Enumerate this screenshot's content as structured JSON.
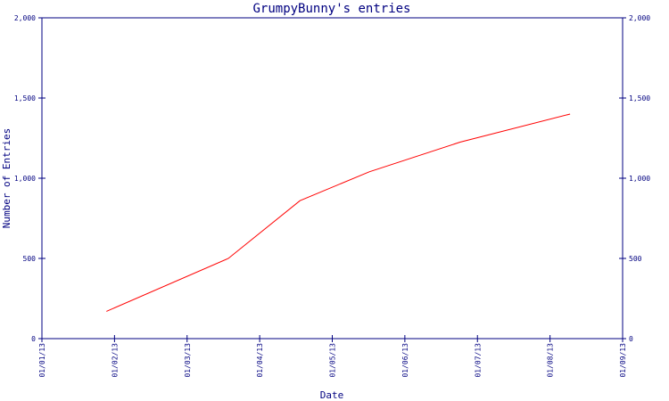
{
  "chart_data": {
    "type": "line",
    "title": "GrumpyBunny's entries",
    "xlabel": "Date",
    "ylabel": "Number of Entries",
    "x_ticks": [
      "01/01/13",
      "01/02/13",
      "01/03/13",
      "01/04/13",
      "01/05/13",
      "01/06/13",
      "01/07/13",
      "01/08/13",
      "01/09/13"
    ],
    "y_ticks": [
      "0",
      "500",
      "1,000",
      "1,500",
      "2,000"
    ],
    "y_tick_values": [
      0,
      500,
      1000,
      1500,
      2000
    ],
    "ylim": [
      0,
      2000
    ],
    "xlim": [
      "2013-01-01",
      "2013-09-01"
    ],
    "y_axis_right": true,
    "grid": false,
    "line_color": "#ff0000",
    "axis_color": "#000080",
    "series": [
      {
        "x": [
          "2013-01-28",
          "2013-03-20",
          "2013-04-19",
          "2013-05-18",
          "2013-06-25",
          "2013-08-10"
        ],
        "y": [
          170,
          500,
          860,
          1040,
          1225,
          1400
        ]
      }
    ]
  }
}
